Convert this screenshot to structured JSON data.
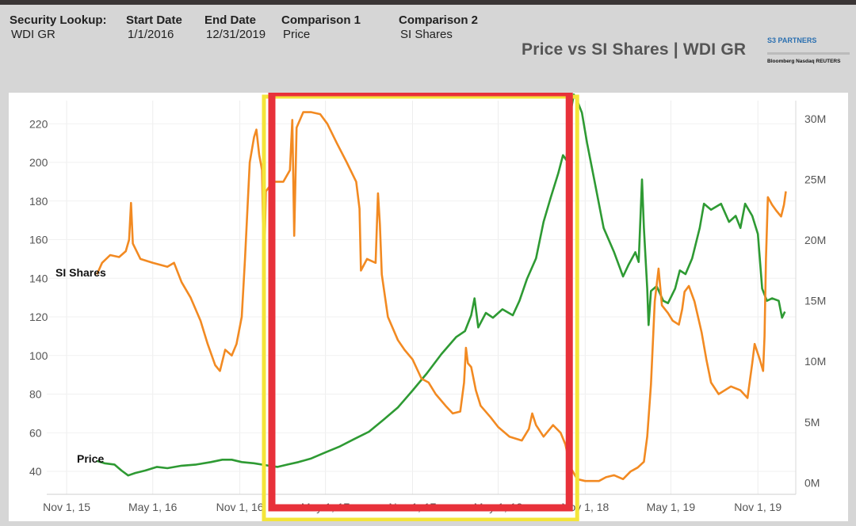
{
  "header": {
    "security_lookup": {
      "label": "Security Lookup:",
      "value": "WDI GR"
    },
    "start_date": {
      "label": "Start Date",
      "value": "1/1/2016"
    },
    "end_date": {
      "label": "End Date",
      "value": "12/31/2019"
    },
    "comparison1": {
      "label": "Comparison 1",
      "value": "Price"
    },
    "comparison2": {
      "label": "Comparison 2",
      "value": "SI Shares"
    }
  },
  "logo": {
    "name": "S3 PARTNERS",
    "partners": "Bloomberg  Nasdaq  REUTERS",
    "icon": "s3-partners-logo"
  },
  "colors": {
    "price": "#f28a22",
    "si_shares": "#2e9a33",
    "red_box": "#e8313a",
    "yellow_box": "#f4e53a"
  },
  "chart_data": {
    "type": "line",
    "title": "Price vs SI Shares | WDI GR",
    "x_ticks": [
      "Nov 1, 15",
      "May 1, 16",
      "Nov 1, 16",
      "May 1, 17",
      "Nov 1, 17",
      "May 1, 18",
      "Nov 1, 18",
      "May 1, 19",
      "Nov 1, 19"
    ],
    "x_range": [
      "2015-09-20",
      "2020-01-20"
    ],
    "y_left": {
      "ticks": [
        40,
        60,
        80,
        100,
        120,
        140,
        160,
        180,
        200,
        220
      ],
      "range": [
        31,
        232
      ]
    },
    "y_right": {
      "ticks": [
        "0M",
        "5M",
        "10M",
        "15M",
        "20M",
        "25M",
        "30M"
      ],
      "tick_values": [
        0,
        5,
        10,
        15,
        20,
        25,
        30
      ],
      "range": [
        -0.5,
        31.5
      ]
    },
    "annotations": {
      "si_label": "SI Shares",
      "price_label": "Price"
    },
    "highlight": {
      "x_from": "2017-01-01",
      "x_to": "2018-10-05"
    },
    "series": [
      {
        "name": "Price",
        "axis": "left",
        "points": [
          [
            "2016-01-04",
            142
          ],
          [
            "2016-01-15",
            148
          ],
          [
            "2016-02-01",
            152
          ],
          [
            "2016-02-20",
            151
          ],
          [
            "2016-03-05",
            154
          ],
          [
            "2016-03-12",
            160
          ],
          [
            "2016-03-16",
            179
          ],
          [
            "2016-03-20",
            158
          ],
          [
            "2016-04-05",
            150
          ],
          [
            "2016-05-01",
            148
          ],
          [
            "2016-06-01",
            146
          ],
          [
            "2016-06-15",
            148
          ],
          [
            "2016-07-01",
            138
          ],
          [
            "2016-07-20",
            130
          ],
          [
            "2016-08-10",
            118
          ],
          [
            "2016-08-25",
            106
          ],
          [
            "2016-09-10",
            95
          ],
          [
            "2016-09-20",
            92
          ],
          [
            "2016-10-01",
            103
          ],
          [
            "2016-10-15",
            100
          ],
          [
            "2016-10-25",
            106
          ],
          [
            "2016-11-05",
            120
          ],
          [
            "2016-11-12",
            150
          ],
          [
            "2016-11-22",
            200
          ],
          [
            "2016-12-01",
            213
          ],
          [
            "2016-12-06",
            217
          ],
          [
            "2016-12-12",
            204
          ],
          [
            "2016-12-18",
            196
          ],
          [
            "2016-12-22",
            140
          ],
          [
            "2016-12-26",
            185
          ],
          [
            "2017-01-10",
            190
          ],
          [
            "2017-02-01",
            190
          ],
          [
            "2017-02-15",
            196
          ],
          [
            "2017-02-20",
            222
          ],
          [
            "2017-02-24",
            162
          ],
          [
            "2017-03-01",
            218
          ],
          [
            "2017-03-15",
            226
          ],
          [
            "2017-04-01",
            226
          ],
          [
            "2017-04-20",
            225
          ],
          [
            "2017-05-05",
            220
          ],
          [
            "2017-05-25",
            210
          ],
          [
            "2017-06-15",
            200
          ],
          [
            "2017-07-05",
            190
          ],
          [
            "2017-07-12",
            176
          ],
          [
            "2017-07-15",
            144
          ],
          [
            "2017-07-28",
            150
          ],
          [
            "2017-08-15",
            148
          ],
          [
            "2017-08-20",
            184
          ],
          [
            "2017-08-24",
            168
          ],
          [
            "2017-08-28",
            142
          ],
          [
            "2017-09-10",
            120
          ],
          [
            "2017-10-01",
            108
          ],
          [
            "2017-10-15",
            103
          ],
          [
            "2017-11-01",
            98
          ],
          [
            "2017-11-20",
            88
          ],
          [
            "2017-12-05",
            86
          ],
          [
            "2017-12-20",
            80
          ],
          [
            "2018-01-10",
            74
          ],
          [
            "2018-01-25",
            70
          ],
          [
            "2018-02-10",
            71
          ],
          [
            "2018-02-18",
            86
          ],
          [
            "2018-02-22",
            104
          ],
          [
            "2018-02-26",
            96
          ],
          [
            "2018-03-05",
            94
          ],
          [
            "2018-03-15",
            82
          ],
          [
            "2018-03-25",
            74
          ],
          [
            "2018-04-15",
            68
          ],
          [
            "2018-05-01",
            63
          ],
          [
            "2018-05-25",
            58
          ],
          [
            "2018-06-20",
            56
          ],
          [
            "2018-07-05",
            62
          ],
          [
            "2018-07-12",
            70
          ],
          [
            "2018-07-20",
            64
          ],
          [
            "2018-08-05",
            58
          ],
          [
            "2018-08-25",
            64
          ],
          [
            "2018-09-10",
            60
          ],
          [
            "2018-09-20",
            54
          ],
          [
            "2018-10-01",
            42
          ],
          [
            "2018-10-15",
            36
          ],
          [
            "2018-11-01",
            35
          ],
          [
            "2018-11-30",
            35
          ],
          [
            "2018-12-15",
            37
          ],
          [
            "2019-01-01",
            38
          ],
          [
            "2019-01-20",
            36
          ],
          [
            "2019-02-05",
            40
          ],
          [
            "2019-02-20",
            42
          ],
          [
            "2019-03-05",
            45
          ],
          [
            "2019-03-12",
            58
          ],
          [
            "2019-03-20",
            85
          ],
          [
            "2019-03-28",
            128
          ],
          [
            "2019-04-05",
            145
          ],
          [
            "2019-04-12",
            126
          ],
          [
            "2019-04-25",
            122
          ],
          [
            "2019-05-05",
            118
          ],
          [
            "2019-05-18",
            116
          ],
          [
            "2019-05-25",
            124
          ],
          [
            "2019-05-30",
            133
          ],
          [
            "2019-06-08",
            136
          ],
          [
            "2019-06-20",
            128
          ],
          [
            "2019-07-05",
            112
          ],
          [
            "2019-07-15",
            98
          ],
          [
            "2019-07-25",
            86
          ],
          [
            "2019-08-10",
            80
          ],
          [
            "2019-09-05",
            84
          ],
          [
            "2019-09-25",
            82
          ],
          [
            "2019-10-10",
            78
          ],
          [
            "2019-10-20",
            96
          ],
          [
            "2019-10-25",
            106
          ],
          [
            "2019-11-05",
            98
          ],
          [
            "2019-11-12",
            92
          ],
          [
            "2019-11-15",
            110
          ],
          [
            "2019-11-18",
            150
          ],
          [
            "2019-11-22",
            182
          ],
          [
            "2019-12-01",
            178
          ],
          [
            "2019-12-10",
            175
          ],
          [
            "2019-12-20",
            172
          ],
          [
            "2019-12-26",
            178
          ],
          [
            "2019-12-30",
            185
          ]
        ]
      },
      {
        "name": "SI Shares",
        "axis": "right",
        "points": [
          [
            "2016-01-04",
            1.8
          ],
          [
            "2016-01-20",
            1.6
          ],
          [
            "2016-02-10",
            1.5
          ],
          [
            "2016-02-25",
            1.0
          ],
          [
            "2016-03-10",
            0.6
          ],
          [
            "2016-03-25",
            0.8
          ],
          [
            "2016-04-15",
            1.0
          ],
          [
            "2016-05-10",
            1.3
          ],
          [
            "2016-06-01",
            1.2
          ],
          [
            "2016-07-01",
            1.4
          ],
          [
            "2016-08-01",
            1.5
          ],
          [
            "2016-09-01",
            1.7
          ],
          [
            "2016-09-25",
            1.9
          ],
          [
            "2016-10-15",
            1.9
          ],
          [
            "2016-11-05",
            1.7
          ],
          [
            "2016-12-01",
            1.6
          ],
          [
            "2017-01-01",
            1.4
          ],
          [
            "2017-01-20",
            1.3
          ],
          [
            "2017-02-10",
            1.5
          ],
          [
            "2017-03-05",
            1.7
          ],
          [
            "2017-04-01",
            2.0
          ],
          [
            "2017-05-01",
            2.5
          ],
          [
            "2017-06-01",
            3.0
          ],
          [
            "2017-07-01",
            3.6
          ],
          [
            "2017-08-01",
            4.2
          ],
          [
            "2017-09-01",
            5.2
          ],
          [
            "2017-10-01",
            6.2
          ],
          [
            "2017-11-01",
            7.6
          ],
          [
            "2017-12-01",
            9.0
          ],
          [
            "2018-01-01",
            10.6
          ],
          [
            "2018-02-01",
            12.0
          ],
          [
            "2018-02-20",
            12.5
          ],
          [
            "2018-03-05",
            13.8
          ],
          [
            "2018-03-12",
            15.2
          ],
          [
            "2018-03-20",
            12.8
          ],
          [
            "2018-04-05",
            14.0
          ],
          [
            "2018-04-20",
            13.6
          ],
          [
            "2018-05-10",
            14.3
          ],
          [
            "2018-06-01",
            13.8
          ],
          [
            "2018-06-15",
            15.0
          ],
          [
            "2018-07-01",
            16.8
          ],
          [
            "2018-07-20",
            18.5
          ],
          [
            "2018-08-05",
            21.5
          ],
          [
            "2018-08-20",
            23.5
          ],
          [
            "2018-09-05",
            25.5
          ],
          [
            "2018-09-15",
            27.0
          ],
          [
            "2018-09-22",
            26.6
          ],
          [
            "2018-10-01",
            30.5
          ],
          [
            "2018-10-08",
            32.0
          ],
          [
            "2018-10-15",
            31.5
          ],
          [
            "2018-10-25",
            30.5
          ],
          [
            "2018-11-05",
            28.0
          ],
          [
            "2018-11-20",
            25.0
          ],
          [
            "2018-12-10",
            21.0
          ],
          [
            "2019-01-01",
            19.0
          ],
          [
            "2019-01-20",
            17.0
          ],
          [
            "2019-02-01",
            18.0
          ],
          [
            "2019-02-15",
            19.0
          ],
          [
            "2019-02-22",
            18.2
          ],
          [
            "2019-03-01",
            25.0
          ],
          [
            "2019-03-05",
            21.0
          ],
          [
            "2019-03-12",
            16.0
          ],
          [
            "2019-03-15",
            13.0
          ],
          [
            "2019-03-20",
            15.8
          ],
          [
            "2019-04-01",
            16.2
          ],
          [
            "2019-04-15",
            15.0
          ],
          [
            "2019-04-25",
            14.8
          ],
          [
            "2019-05-10",
            16.0
          ],
          [
            "2019-05-20",
            17.5
          ],
          [
            "2019-06-01",
            17.2
          ],
          [
            "2019-06-15",
            18.5
          ],
          [
            "2019-07-01",
            21.0
          ],
          [
            "2019-07-10",
            23.0
          ],
          [
            "2019-07-25",
            22.5
          ],
          [
            "2019-08-15",
            23.0
          ],
          [
            "2019-09-01",
            21.5
          ],
          [
            "2019-09-15",
            22.0
          ],
          [
            "2019-09-25",
            21.0
          ],
          [
            "2019-10-05",
            23.0
          ],
          [
            "2019-10-20",
            22.0
          ],
          [
            "2019-11-01",
            20.5
          ],
          [
            "2019-11-10",
            16.0
          ],
          [
            "2019-11-20",
            15.0
          ],
          [
            "2019-12-01",
            15.2
          ],
          [
            "2019-12-15",
            15.0
          ],
          [
            "2019-12-22",
            13.6
          ],
          [
            "2019-12-28",
            14.1
          ]
        ]
      }
    ]
  }
}
